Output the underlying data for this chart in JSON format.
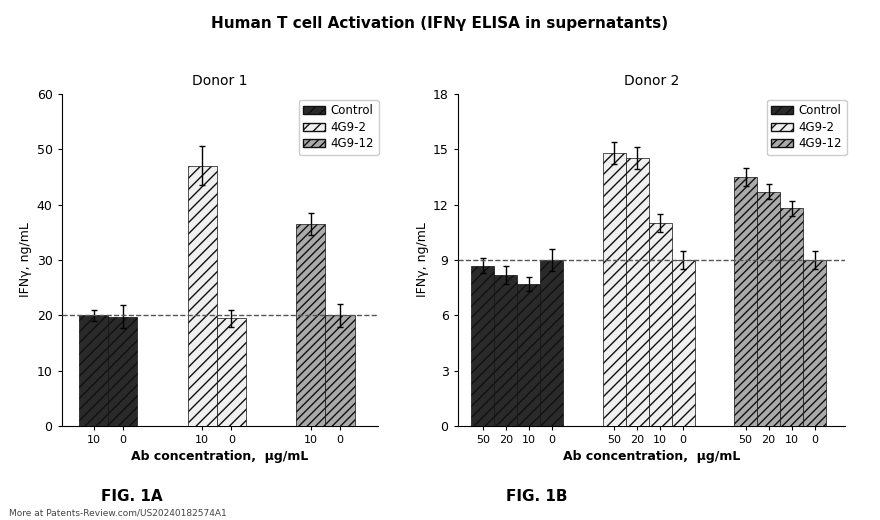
{
  "title": "Human T cell Activation (IFNγ ELISA in supernatants)",
  "fig1a_title": "Donor 1",
  "fig1b_title": "Donor 2",
  "fig1a_ylabel": "IFNγ, ng/mL",
  "fig1b_ylabel": "IFNγ, ng/mL",
  "fig1a_xlabel": "Ab concentration,  μg/mL",
  "fig1b_xlabel": "Ab concentration,  μg/mL",
  "fig1a_ylim": [
    0,
    60
  ],
  "fig1b_ylim": [
    0,
    18
  ],
  "fig1a_yticks": [
    0,
    10,
    20,
    30,
    40,
    50,
    60
  ],
  "fig1b_yticks": [
    0,
    3,
    6,
    9,
    12,
    15,
    18
  ],
  "fig1a_hline": 20,
  "fig1b_hline": 9,
  "fig1a_caption": "FIG. 1A",
  "fig1b_caption": "FIG. 1B",
  "footer": "More at Patents-Review.com/US20240182574A1",
  "legend_labels": [
    "Control",
    "4G9-2",
    "4G9-12"
  ],
  "fig1a_groups": [
    "Control",
    "4G9-2",
    "4G9-12"
  ],
  "fig1a_xtick_labels": [
    [
      "10",
      "0"
    ],
    [
      "10",
      "0"
    ],
    [
      "10",
      "0"
    ]
  ],
  "fig1a_values": {
    "Control": [
      20.0,
      19.8
    ],
    "4G9-2": [
      47.0,
      19.5
    ],
    "4G9-12": [
      36.5,
      20.0
    ]
  },
  "fig1a_errors": {
    "Control": [
      1.0,
      2.0
    ],
    "4G9-2": [
      3.5,
      1.5
    ],
    "4G9-12": [
      2.0,
      2.0
    ]
  },
  "fig1b_groups": [
    "Control",
    "4G9-2",
    "4G9-12"
  ],
  "fig1b_xtick_labels": [
    [
      "50",
      "20",
      "10",
      "0"
    ],
    [
      "50",
      "20",
      "10",
      "0"
    ],
    [
      "50",
      "20",
      "10",
      "0"
    ]
  ],
  "fig1b_values": {
    "Control": [
      8.7,
      8.2,
      7.7,
      9.0
    ],
    "4G9-2": [
      14.8,
      14.5,
      11.0,
      9.0
    ],
    "4G9-12": [
      13.5,
      12.7,
      11.8,
      9.0
    ]
  },
  "fig1b_errors": {
    "Control": [
      0.4,
      0.5,
      0.4,
      0.6
    ],
    "4G9-2": [
      0.6,
      0.6,
      0.5,
      0.5
    ],
    "4G9-12": [
      0.5,
      0.4,
      0.4,
      0.5
    ]
  },
  "bg_color": "#ffffff"
}
